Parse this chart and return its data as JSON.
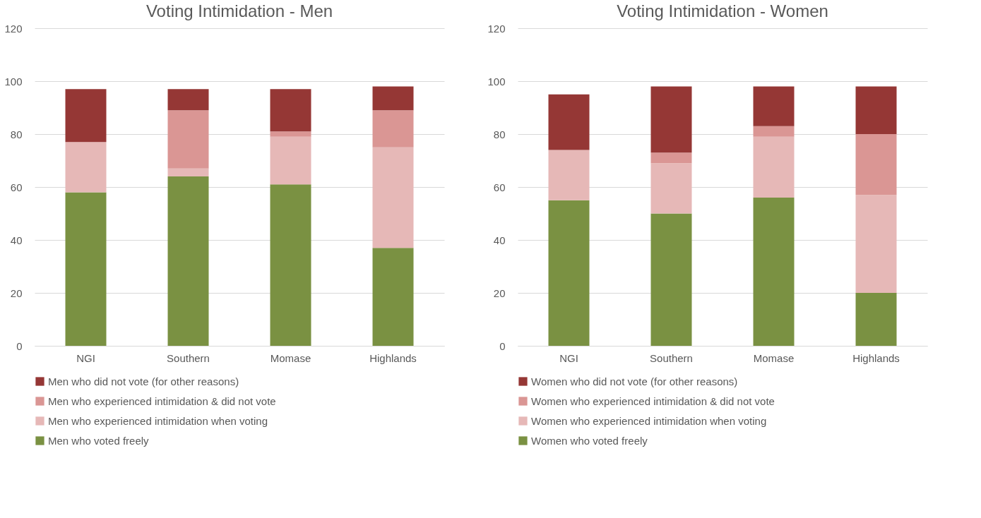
{
  "chart_data": [
    {
      "type": "bar",
      "title": "Voting Intimidation - Men",
      "categories": [
        "NGI",
        "Southern",
        "Momase",
        "Highlands"
      ],
      "stacked": true,
      "ylim": [
        0,
        120
      ],
      "yticks": [
        0,
        20,
        40,
        60,
        80,
        100,
        120
      ],
      "grid": "y",
      "legend": "bottom",
      "series": [
        {
          "name": "Men who voted freely",
          "color": "#7a9142",
          "values": [
            58,
            64,
            61,
            37
          ]
        },
        {
          "name": "Men who experienced intimidation when voting",
          "color": "#e6b8b7",
          "values": [
            19,
            3,
            18,
            38
          ]
        },
        {
          "name": "Men who experienced intimidation & did not vote",
          "color": "#da9694",
          "values": [
            0,
            22,
            2,
            14
          ]
        },
        {
          "name": "Men who did not vote (for other reasons)",
          "color": "#953735",
          "values": [
            20,
            8,
            16,
            9
          ]
        }
      ]
    },
    {
      "type": "bar",
      "title": "Voting Intimidation - Women",
      "categories": [
        "NGI",
        "Southern",
        "Momase",
        "Highlands"
      ],
      "stacked": true,
      "ylim": [
        0,
        120
      ],
      "yticks": [
        0,
        20,
        40,
        60,
        80,
        100,
        120
      ],
      "grid": "y",
      "legend": "bottom",
      "series": [
        {
          "name": "Women who voted freely",
          "color": "#7a9142",
          "values": [
            55,
            50,
            56,
            20
          ]
        },
        {
          "name": "Women who experienced intimidation when voting",
          "color": "#e6b8b7",
          "values": [
            19,
            19,
            23,
            37
          ]
        },
        {
          "name": "Women who experienced intimidation & did not vote",
          "color": "#da9694",
          "values": [
            0,
            4,
            4,
            23
          ]
        },
        {
          "name": "Women who did not vote (for other reasons)",
          "color": "#953735",
          "values": [
            21,
            25,
            15,
            18
          ]
        }
      ]
    }
  ]
}
